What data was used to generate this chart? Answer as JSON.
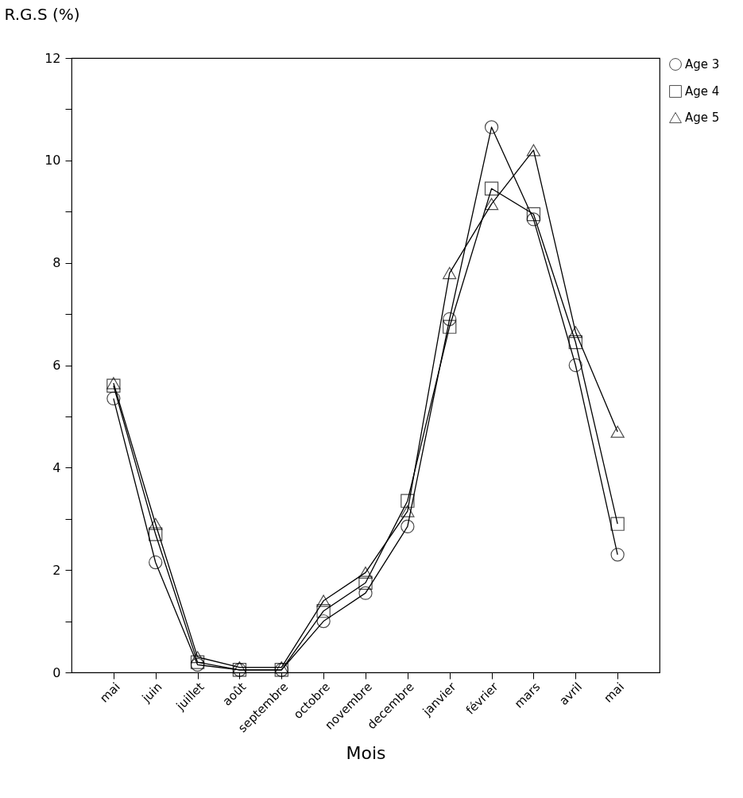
{
  "chart_data": {
    "type": "line",
    "ylabel": "R.G.S (%)",
    "xlabel": "Mois",
    "categories": [
      "mai",
      "juin",
      "juillet",
      "août",
      "septembre",
      "octobre",
      "novembre",
      "decembre",
      "janvier",
      "février",
      "mars",
      "avril",
      "mai"
    ],
    "series": [
      {
        "name": "Age 3",
        "color": "#000000",
        "marker": "circle",
        "values": [
          5.35,
          2.15,
          0.15,
          0.05,
          0.05,
          1.0,
          1.55,
          2.85,
          6.9,
          10.65,
          8.85,
          6.0,
          2.3
        ]
      },
      {
        "name": "Age 4",
        "color": "#000000",
        "marker": "square",
        "values": [
          5.6,
          2.7,
          0.2,
          0.05,
          0.05,
          1.2,
          1.75,
          3.35,
          6.75,
          9.45,
          8.95,
          6.45,
          2.9
        ]
      },
      {
        "name": "Age 5",
        "color": "#000000",
        "marker": "triangle",
        "values": [
          5.65,
          2.9,
          0.3,
          0.1,
          0.1,
          1.4,
          1.95,
          3.15,
          7.8,
          9.15,
          10.2,
          6.65,
          4.7
        ]
      }
    ],
    "ylim": [
      0,
      12
    ],
    "yticks": [
      0,
      {
        "value": 1,
        "label": null
      },
      2,
      {
        "value": 3,
        "label": null
      },
      4,
      {
        "value": 5,
        "label": null
      },
      6,
      {
        "value": 7,
        "label": null
      },
      8,
      {
        "value": 9,
        "label": null
      },
      10,
      {
        "value": 11,
        "label": null
      },
      12
    ],
    "grid": false,
    "legend": "top right",
    "line_style": "solid"
  }
}
